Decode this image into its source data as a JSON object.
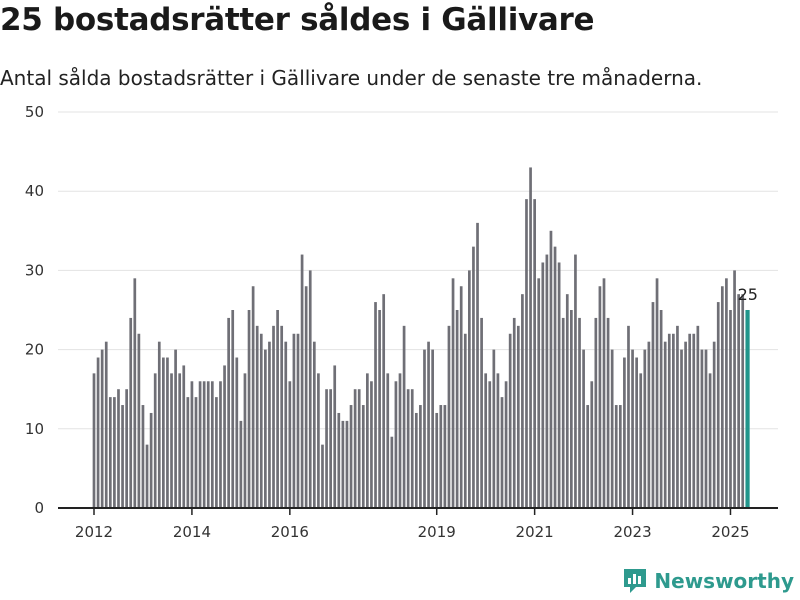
{
  "title": "25 bostadsrätter såldes i Gällivare",
  "subtitle": "Antal sålda bostadsrätter i Gällivare under de senaste tre månaderna.",
  "brand": "Newsworthy",
  "colors": {
    "bar": "#6f6f76",
    "highlight": "#21958b",
    "grid": "#e3e3e3",
    "axis": "#222222"
  },
  "chart_data": {
    "type": "bar",
    "ylim": [
      0,
      50
    ],
    "yticks": [
      0,
      10,
      20,
      30,
      40,
      50
    ],
    "x_tick_labels": [
      {
        "label": "2012",
        "index": 0
      },
      {
        "label": "2014",
        "index": 24
      },
      {
        "label": "2016",
        "index": 48
      },
      {
        "label": "2019",
        "index": 84
      },
      {
        "label": "2021",
        "index": 108
      },
      {
        "label": "2023",
        "index": 132
      },
      {
        "label": "2025",
        "index": 156
      }
    ],
    "start_period": "2012-01",
    "values": [
      17,
      19,
      20,
      21,
      14,
      14,
      15,
      13,
      15,
      24,
      29,
      22,
      13,
      8,
      12,
      17,
      21,
      19,
      19,
      17,
      20,
      17,
      18,
      14,
      16,
      14,
      16,
      16,
      16,
      16,
      14,
      16,
      18,
      24,
      25,
      19,
      11,
      17,
      25,
      28,
      23,
      22,
      20,
      21,
      23,
      25,
      23,
      21,
      16,
      22,
      22,
      32,
      28,
      30,
      21,
      17,
      8,
      15,
      15,
      18,
      12,
      11,
      11,
      13,
      15,
      15,
      13,
      17,
      16,
      26,
      25,
      27,
      17,
      9,
      16,
      17,
      23,
      15,
      15,
      12,
      13,
      20,
      21,
      20,
      12,
      13,
      13,
      23,
      29,
      25,
      28,
      22,
      30,
      33,
      36,
      24,
      17,
      16,
      20,
      17,
      14,
      16,
      22,
      24,
      23,
      27,
      39,
      43,
      39,
      29,
      31,
      32,
      35,
      33,
      31,
      24,
      27,
      25,
      32,
      24,
      20,
      13,
      16,
      24,
      28,
      29,
      24,
      20,
      13,
      13,
      19,
      23,
      20,
      19,
      17,
      20,
      21,
      26,
      29,
      25,
      21,
      22,
      22,
      23,
      20,
      21,
      22,
      22,
      23,
      20,
      20,
      17,
      21,
      26,
      28,
      29,
      25,
      30,
      27,
      27,
      25
    ],
    "highlight_index": 160,
    "annotation": "25"
  }
}
